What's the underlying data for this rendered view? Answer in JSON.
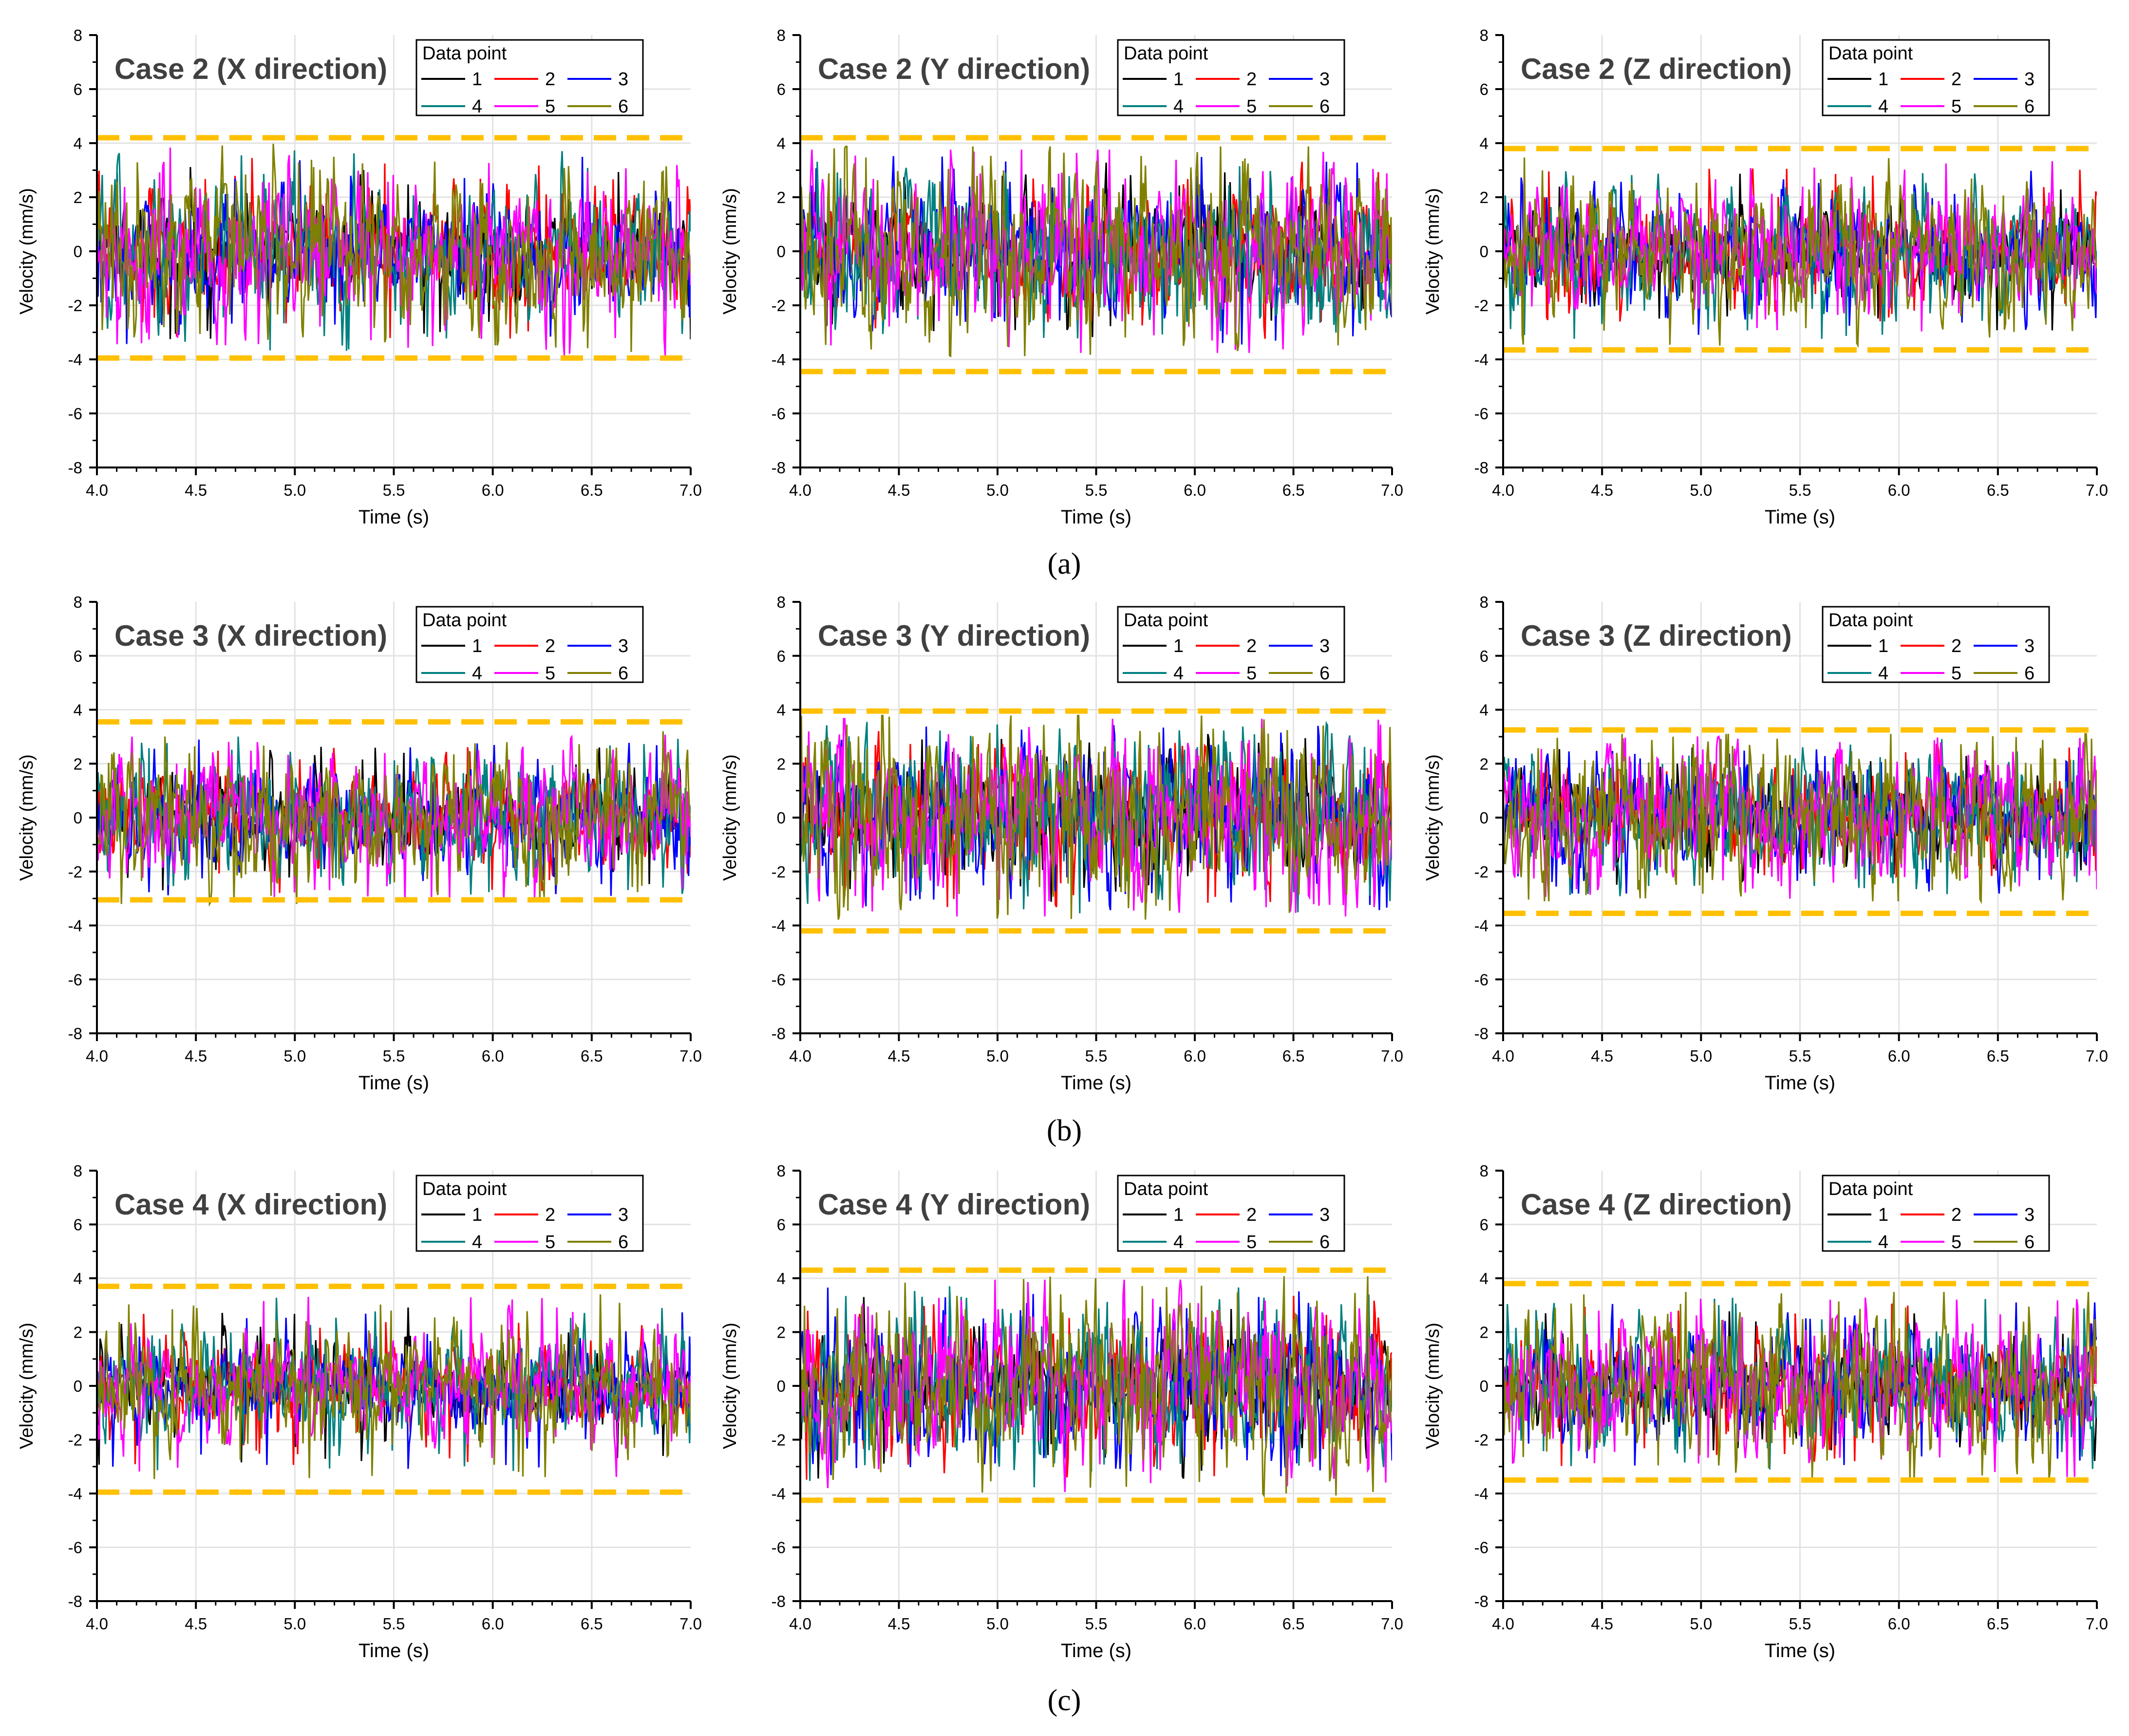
{
  "captions": [
    "(a)",
    "(b)",
    "(c)"
  ],
  "colors": {
    "series": [
      "#000000",
      "#ff0000",
      "#0000ff",
      "#008080",
      "#ff00ff",
      "#808000"
    ],
    "threshold": "#ffc000",
    "grid": "#e3e3e3",
    "title": "#404040"
  },
  "chart_data": [
    {
      "type": "line",
      "title": "Case 2 (X direction)",
      "xlabel": "Time (s)",
      "ylabel": "Velocity (mm/s)",
      "xlim": [
        4.0,
        7.0
      ],
      "ylim": [
        -8,
        8
      ],
      "xticks": [
        "4.0",
        "4.5",
        "5.0",
        "5.5",
        "6.0",
        "6.5",
        "7.0"
      ],
      "yticks": [
        "8",
        "6",
        "4",
        "2",
        "0",
        "-2",
        "-4",
        "-6",
        "-8"
      ],
      "legend_title": "Data point",
      "series_names": [
        "1",
        "2",
        "3",
        "4",
        "5",
        "6"
      ],
      "upper_limit": 4.2,
      "lower_limit": -3.95,
      "amplitude": 1.25,
      "peak": 4.1
    },
    {
      "type": "line",
      "title": "Case 2 (Y direction)",
      "xlabel": "Time (s)",
      "ylabel": "Velocity (mm/s)",
      "xlim": [
        4.0,
        7.0
      ],
      "ylim": [
        -8,
        8
      ],
      "xticks": [
        "4.0",
        "4.5",
        "5.0",
        "5.5",
        "6.0",
        "6.5",
        "7.0"
      ],
      "yticks": [
        "8",
        "6",
        "4",
        "2",
        "0",
        "-2",
        "-4",
        "-6",
        "-8"
      ],
      "legend_title": "Data point",
      "series_names": [
        "1",
        "2",
        "3",
        "4",
        "5",
        "6"
      ],
      "upper_limit": 4.2,
      "lower_limit": -4.45,
      "amplitude": 1.4,
      "peak": 4.0
    },
    {
      "type": "line",
      "title": "Case 2 (Z direction)",
      "xlabel": "Time (s)",
      "ylabel": "Velocity (mm/s)",
      "xlim": [
        4.0,
        7.0
      ],
      "ylim": [
        -8,
        8
      ],
      "xticks": [
        "4.0",
        "4.5",
        "5.0",
        "5.5",
        "6.0",
        "6.5",
        "7.0"
      ],
      "yticks": [
        "8",
        "6",
        "4",
        "2",
        "0",
        "-2",
        "-4",
        "-6",
        "-8"
      ],
      "legend_title": "Data point",
      "series_names": [
        "1",
        "2",
        "3",
        "4",
        "5",
        "6"
      ],
      "upper_limit": 3.8,
      "lower_limit": -3.65,
      "amplitude": 1.1,
      "peak": 3.6
    },
    {
      "type": "line",
      "title": "Case 3 (X direction)",
      "xlabel": "Time (s)",
      "ylabel": "Velocity (mm/s)",
      "xlim": [
        4.0,
        7.0
      ],
      "ylim": [
        -8,
        8
      ],
      "xticks": [
        "4.0",
        "4.5",
        "5.0",
        "5.5",
        "6.0",
        "6.5",
        "7.0"
      ],
      "yticks": [
        "8",
        "6",
        "4",
        "2",
        "0",
        "-2",
        "-4",
        "-6",
        "-8"
      ],
      "legend_title": "Data point",
      "series_names": [
        "1",
        "2",
        "3",
        "4",
        "5",
        "6"
      ],
      "upper_limit": 3.55,
      "lower_limit": -3.05,
      "amplitude": 1.1,
      "peak": 3.3
    },
    {
      "type": "line",
      "title": "Case 3 (Y direction)",
      "xlabel": "Time (s)",
      "ylabel": "Velocity (mm/s)",
      "xlim": [
        4.0,
        7.0
      ],
      "ylim": [
        -8,
        8
      ],
      "xticks": [
        "4.0",
        "4.5",
        "5.0",
        "5.5",
        "6.0",
        "6.5",
        "7.0"
      ],
      "yticks": [
        "8",
        "6",
        "4",
        "2",
        "0",
        "-2",
        "-4",
        "-6",
        "-8"
      ],
      "legend_title": "Data point",
      "series_names": [
        "1",
        "2",
        "3",
        "4",
        "5",
        "6"
      ],
      "upper_limit": 3.95,
      "lower_limit": -4.2,
      "amplitude": 1.5,
      "peak": 3.9
    },
    {
      "type": "line",
      "title": "Case 3 (Z direction)",
      "xlabel": "Time (s)",
      "ylabel": "Velocity (mm/s)",
      "xlim": [
        4.0,
        7.0
      ],
      "ylim": [
        -8,
        8
      ],
      "xticks": [
        "4.0",
        "4.5",
        "5.0",
        "5.5",
        "6.0",
        "6.5",
        "7.0"
      ],
      "yticks": [
        "8",
        "6",
        "4",
        "2",
        "0",
        "-2",
        "-4",
        "-6",
        "-8"
      ],
      "legend_title": "Data point",
      "series_names": [
        "1",
        "2",
        "3",
        "4",
        "5",
        "6"
      ],
      "upper_limit": 3.25,
      "lower_limit": -3.55,
      "amplitude": 1.2,
      "peak": 3.2
    },
    {
      "type": "line",
      "title": "Case 4 (X direction)",
      "xlabel": "Time (s)",
      "ylabel": "Velocity (mm/s)",
      "xlim": [
        4.0,
        7.0
      ],
      "ylim": [
        -8,
        8
      ],
      "xticks": [
        "4.0",
        "4.5",
        "5.0",
        "5.5",
        "6.0",
        "6.5",
        "7.0"
      ],
      "yticks": [
        "8",
        "6",
        "4",
        "2",
        "0",
        "-2",
        "-4",
        "-6",
        "-8"
      ],
      "legend_title": "Data point",
      "series_names": [
        "1",
        "2",
        "3",
        "4",
        "5",
        "6"
      ],
      "upper_limit": 3.7,
      "lower_limit": -3.95,
      "amplitude": 0.9,
      "peak": 3.6
    },
    {
      "type": "line",
      "title": "Case 4 (Y direction)",
      "xlabel": "Time (s)",
      "ylabel": "Velocity (mm/s)",
      "xlim": [
        4.0,
        7.0
      ],
      "ylim": [
        -8,
        8
      ],
      "xticks": [
        "4.0",
        "4.5",
        "5.0",
        "5.5",
        "6.0",
        "6.5",
        "7.0"
      ],
      "yticks": [
        "8",
        "6",
        "4",
        "2",
        "0",
        "-2",
        "-4",
        "-6",
        "-8"
      ],
      "legend_title": "Data point",
      "series_names": [
        "1",
        "2",
        "3",
        "4",
        "5",
        "6"
      ],
      "upper_limit": 4.3,
      "lower_limit": -4.25,
      "amplitude": 1.45,
      "peak": 4.2
    },
    {
      "type": "line",
      "title": "Case 4 (Z direction)",
      "xlabel": "Time (s)",
      "ylabel": "Velocity (mm/s)",
      "xlim": [
        4.0,
        7.0
      ],
      "ylim": [
        -8,
        8
      ],
      "xticks": [
        "4.0",
        "4.5",
        "5.0",
        "5.5",
        "6.0",
        "6.5",
        "7.0"
      ],
      "yticks": [
        "8",
        "6",
        "4",
        "2",
        "0",
        "-2",
        "-4",
        "-6",
        "-8"
      ],
      "legend_title": "Data point",
      "series_names": [
        "1",
        "2",
        "3",
        "4",
        "5",
        "6"
      ],
      "upper_limit": 3.8,
      "lower_limit": -3.5,
      "amplitude": 1.15,
      "peak": 3.6
    }
  ]
}
